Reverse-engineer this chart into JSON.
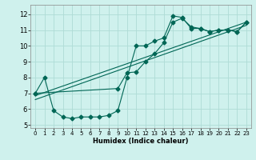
{
  "xlabel": "Humidex (Indice chaleur)",
  "background_color": "#cff1ed",
  "grid_color": "#aedbd6",
  "line_color": "#006655",
  "xlim": [
    -0.5,
    23.5
  ],
  "ylim": [
    4.8,
    12.6
  ],
  "yticks": [
    5,
    6,
    7,
    8,
    9,
    10,
    11,
    12
  ],
  "xticks": [
    0,
    1,
    2,
    3,
    4,
    5,
    6,
    7,
    8,
    9,
    10,
    11,
    12,
    13,
    14,
    15,
    16,
    17,
    18,
    19,
    20,
    21,
    22,
    23
  ],
  "series1_x": [
    0,
    1,
    2,
    3,
    4,
    5,
    6,
    7,
    8,
    9,
    10,
    11,
    12,
    13,
    14,
    15,
    16,
    17,
    18,
    19,
    20,
    21,
    22,
    23
  ],
  "series1_y": [
    7.0,
    8.0,
    5.9,
    5.5,
    5.4,
    5.5,
    5.5,
    5.5,
    5.6,
    5.9,
    8.0,
    10.0,
    10.0,
    10.3,
    10.5,
    11.9,
    11.8,
    11.1,
    11.1,
    10.9,
    11.0,
    11.0,
    10.9,
    11.5
  ],
  "series2_x": [
    0,
    9,
    10,
    11,
    12,
    13,
    14,
    15,
    16,
    17,
    18,
    19,
    20,
    21,
    22,
    23
  ],
  "series2_y": [
    7.0,
    7.3,
    8.3,
    8.35,
    9.0,
    9.5,
    10.2,
    11.5,
    11.75,
    11.2,
    11.1,
    10.9,
    11.0,
    11.0,
    10.9,
    11.5
  ],
  "trend1_x": [
    0,
    23
  ],
  "trend1_y": [
    6.85,
    11.5
  ],
  "trend2_x": [
    0,
    23
  ],
  "trend2_y": [
    6.6,
    11.3
  ]
}
